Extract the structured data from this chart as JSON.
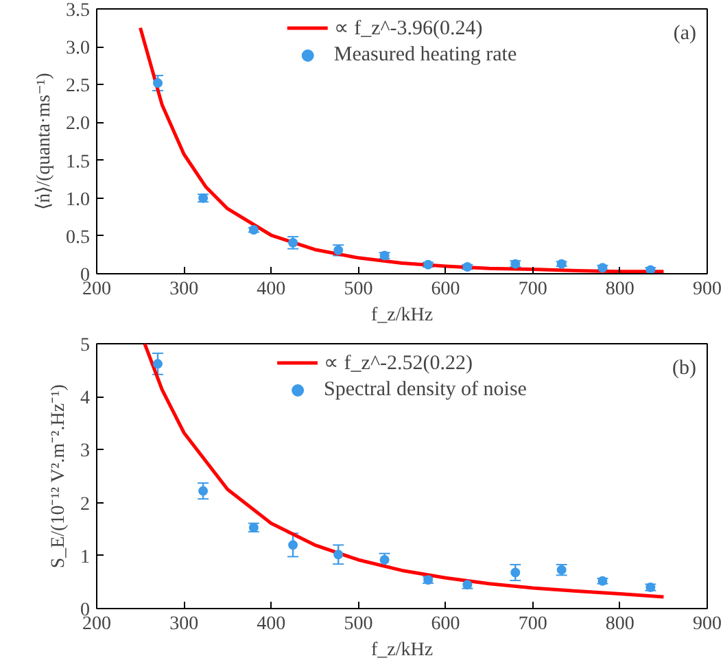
{
  "chart_data": [
    {
      "type": "scatter",
      "xlabel": "f_z/kHz",
      "ylabel": "⟨ṅ⟩/(quanta·ms⁻¹)",
      "xlim": [
        200,
        900
      ],
      "ylim": [
        0,
        3.5
      ],
      "xticks": [
        200,
        300,
        400,
        500,
        600,
        700,
        800,
        900
      ],
      "yticks": [
        {
          "value": 0,
          "label": "0"
        },
        {
          "value": 0.5,
          "label": "0.5"
        },
        {
          "value": 1,
          "label": "1.0"
        },
        {
          "value": 1.5,
          "label": "1.5"
        },
        {
          "value": 2,
          "label": "2.0"
        },
        {
          "value": 2.5,
          "label": "2.5"
        },
        {
          "value": 3,
          "label": "3.0"
        },
        {
          "value": 3.5,
          "label": "3.5"
        }
      ],
      "grid": false,
      "legend": "top",
      "annotations": [
        "(a)"
      ],
      "series": [
        {
          "type": "line",
          "name": "∝ f_z^-3.96(0.24)",
          "color": "#ff0000",
          "x": [
            250,
            275,
            300,
            325,
            350,
            400,
            450,
            500,
            550,
            600,
            650,
            700,
            750,
            800,
            850
          ],
          "values": [
            3.25,
            2.23,
            1.58,
            1.15,
            0.86,
            0.51,
            0.32,
            0.21,
            0.14,
            0.1,
            0.07,
            0.06,
            0.04,
            0.03,
            0.03
          ]
        },
        {
          "name": "Measured heating rate",
          "color": "#3d9be9",
          "marker": "circle",
          "x": [
            270,
            322,
            380,
            425,
            477,
            530,
            580,
            625,
            680,
            733,
            780,
            835
          ],
          "values": [
            2.52,
            1.0,
            0.58,
            0.41,
            0.31,
            0.24,
            0.12,
            0.09,
            0.13,
            0.13,
            0.08,
            0.05
          ],
          "errors": [
            0.1,
            0.05,
            0.03,
            0.08,
            0.07,
            0.04,
            0.03,
            0.03,
            0.04,
            0.03,
            0.03,
            0.03
          ]
        }
      ]
    },
    {
      "type": "scatter",
      "xlabel": "f_z/kHz",
      "ylabel": "S_E/(10⁻¹² V².m⁻².Hz⁻¹)",
      "xlim": [
        200,
        900
      ],
      "ylim": [
        0,
        5
      ],
      "xticks": [
        200,
        300,
        400,
        500,
        600,
        700,
        800,
        900
      ],
      "yticks": [
        0,
        1,
        2,
        3,
        4,
        5
      ],
      "grid": false,
      "legend": "top",
      "annotations": [
        "(b)"
      ],
      "series": [
        {
          "type": "line",
          "name": "∝ f_z^-2.52(0.22)",
          "color": "#ff0000",
          "x": [
            255,
            275,
            300,
            350,
            400,
            450,
            500,
            550,
            600,
            650,
            700,
            750,
            800,
            850
          ],
          "values": [
            5.0,
            4.13,
            3.32,
            2.25,
            1.61,
            1.2,
            0.92,
            0.72,
            0.58,
            0.47,
            0.39,
            0.33,
            0.28,
            0.22
          ]
        },
        {
          "name": "Spectral density of noise",
          "color": "#3d9be9",
          "marker": "circle",
          "x": [
            270,
            322,
            380,
            425,
            477,
            530,
            580,
            625,
            680,
            733,
            780,
            835
          ],
          "values": [
            4.62,
            2.22,
            1.53,
            1.2,
            1.02,
            0.92,
            0.54,
            0.45,
            0.68,
            0.73,
            0.52,
            0.4
          ],
          "errors": [
            0.2,
            0.15,
            0.08,
            0.22,
            0.18,
            0.12,
            0.06,
            0.07,
            0.15,
            0.1,
            0.05,
            0.06
          ]
        }
      ]
    }
  ]
}
